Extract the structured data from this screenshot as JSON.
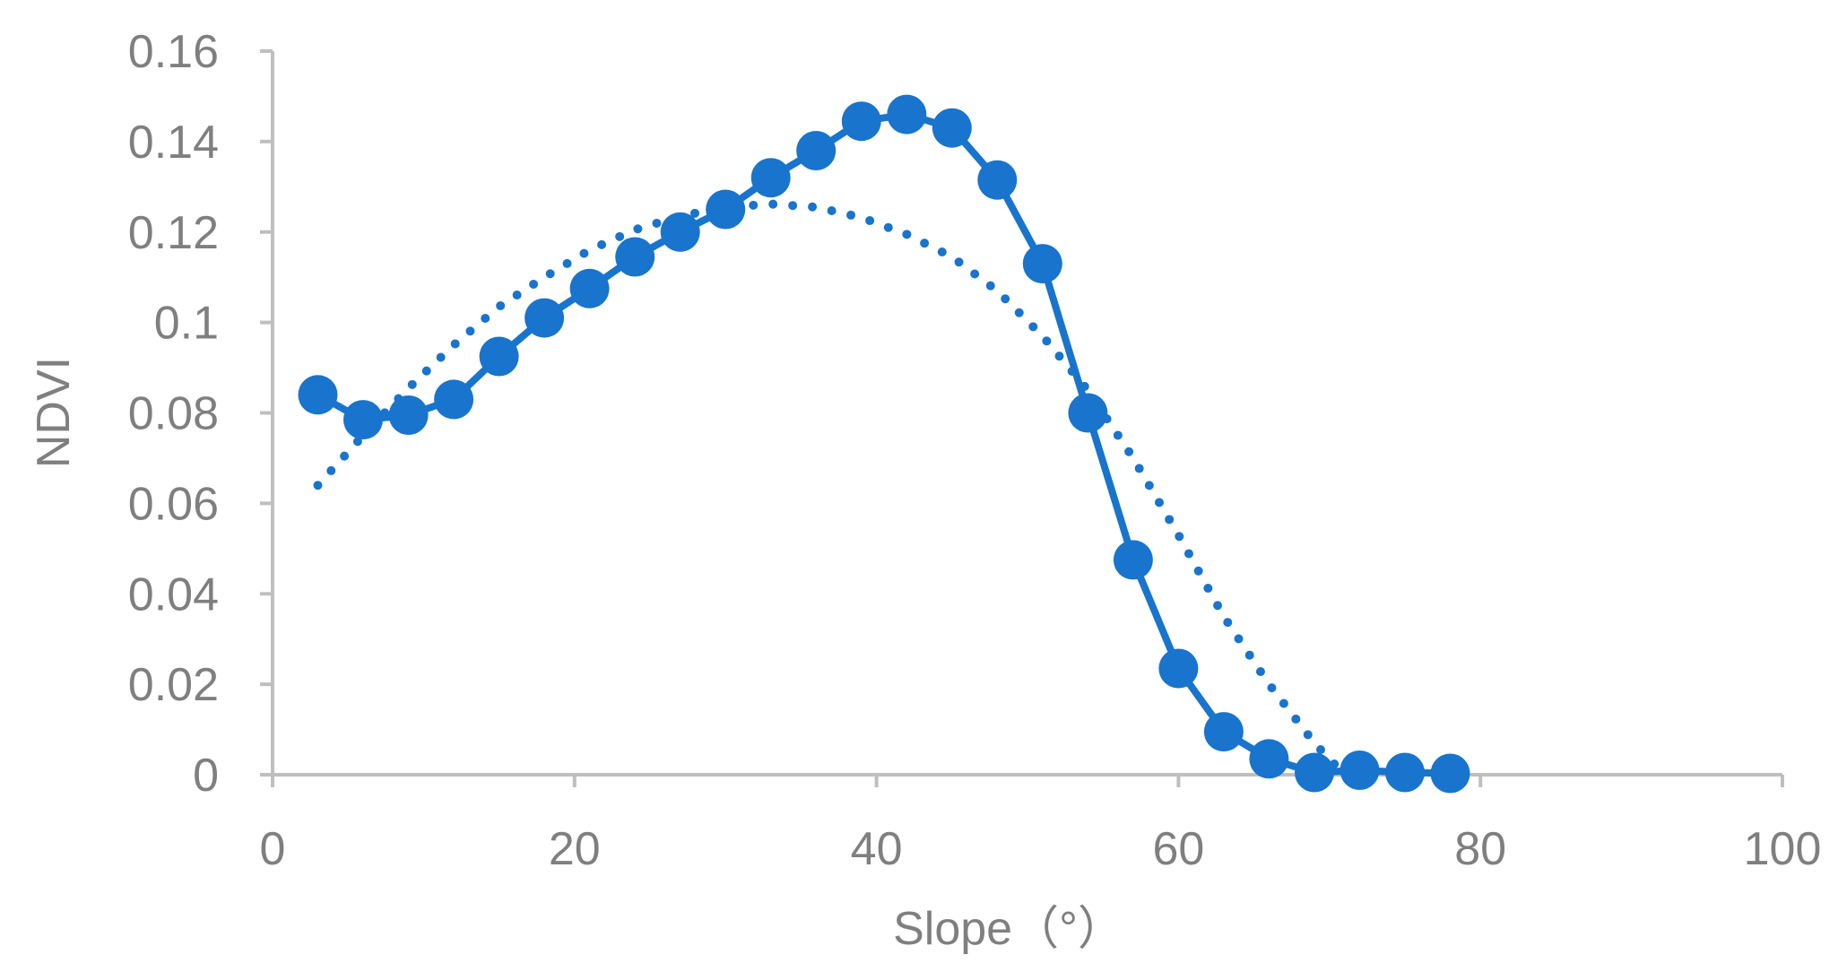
{
  "colors": {
    "series": "#1874CD",
    "axis": "#bfbfbf",
    "text": "#7f7f7f"
  },
  "chart_data": {
    "type": "scatter",
    "title": "",
    "xlabel": "Slope（°）",
    "ylabel": "NDVI",
    "xlim": [
      0,
      100
    ],
    "ylim": [
      0,
      0.16
    ],
    "xticks": [
      "0",
      "20",
      "40",
      "60",
      "80",
      "100"
    ],
    "yticks": [
      "0",
      "0.02",
      "0.04",
      "0.06",
      "0.08",
      "0.1",
      "0.12",
      "0.14",
      "0.16"
    ],
    "xtick_values": [
      0,
      20,
      40,
      60,
      80,
      100
    ],
    "ytick_values": [
      0,
      0.02,
      0.04,
      0.06,
      0.08,
      0.1,
      0.12,
      0.14,
      0.16
    ],
    "grid": false,
    "legend": "none",
    "series": [
      {
        "style": "line-with-markers",
        "x": [
          3,
          6,
          9,
          12,
          15,
          18,
          21,
          24,
          27,
          30,
          33,
          36,
          39,
          42,
          45,
          48,
          51,
          54,
          57,
          60,
          63,
          66,
          69,
          72,
          75,
          78
        ],
        "y": [
          0.084,
          0.0785,
          0.0795,
          0.083,
          0.0925,
          0.101,
          0.1075,
          0.1145,
          0.12,
          0.125,
          0.132,
          0.138,
          0.1445,
          0.146,
          0.143,
          0.1315,
          0.113,
          0.08,
          0.0475,
          0.0235,
          0.0095,
          0.0035,
          0.0005,
          0.001,
          0.0005,
          0.0003
        ]
      },
      {
        "style": "dotted-trendline",
        "x": [
          3,
          6,
          9,
          12,
          15,
          18,
          21,
          24,
          27,
          30,
          33,
          36,
          39,
          42,
          45,
          48,
          51,
          54,
          57,
          60,
          63,
          66,
          69,
          71
        ],
        "y": [
          0.064,
          0.075,
          0.0855,
          0.095,
          0.1035,
          0.11,
          0.116,
          0.1205,
          0.1235,
          0.1255,
          0.1262,
          0.1255,
          0.1232,
          0.1195,
          0.1145,
          0.107,
          0.097,
          0.085,
          0.07,
          0.053,
          0.035,
          0.02,
          0.007,
          0.0
        ]
      }
    ]
  }
}
